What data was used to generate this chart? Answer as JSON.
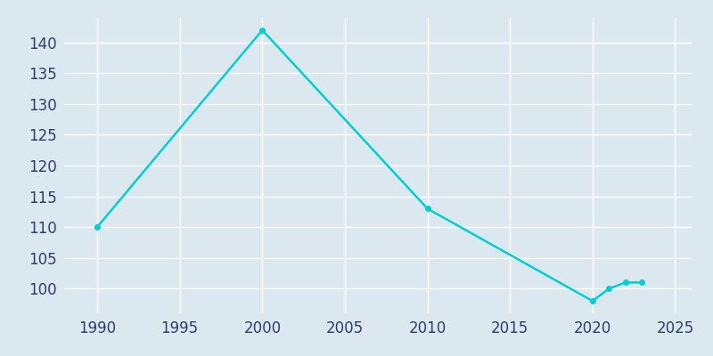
{
  "years": [
    1990,
    2000,
    2010,
    2020,
    2021,
    2022,
    2023
  ],
  "population": [
    110,
    142,
    113,
    98,
    100,
    101,
    101
  ],
  "line_color": "#00CED1",
  "marker": "o",
  "marker_size": 4,
  "bg_color": "#dce8f0",
  "plot_bg_color": "#dce8f0",
  "grid_color": "#ffffff",
  "tick_color": "#2c3e6b",
  "xlim": [
    1988,
    2026
  ],
  "ylim": [
    96,
    144
  ],
  "xticks": [
    1990,
    1995,
    2000,
    2005,
    2010,
    2015,
    2020,
    2025
  ],
  "yticks": [
    100,
    105,
    110,
    115,
    120,
    125,
    130,
    135,
    140
  ],
  "tick_fontsize": 12,
  "linewidth": 1.8
}
